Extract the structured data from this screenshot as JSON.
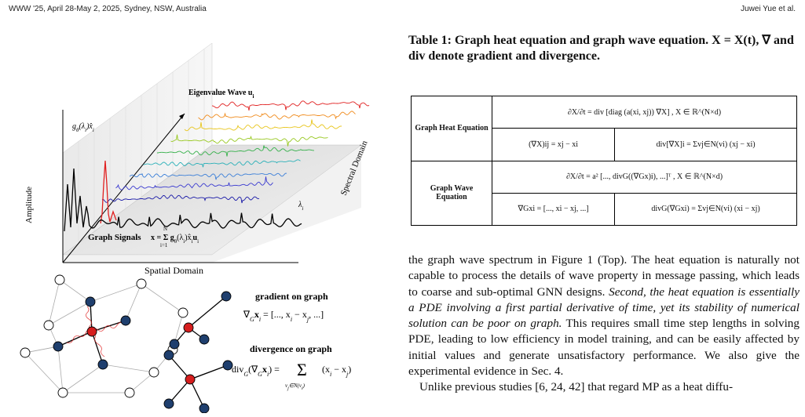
{
  "header": {
    "venue": "WWW '25, April 28-May 2, 2025, Sydney, NSW, Australia",
    "authors": "Juwei Yue et al."
  },
  "figure": {
    "eigen_label": "Eigenvalue Wave  u",
    "eigen_sub": "i",
    "g_label": "g",
    "g_label_rest": "(λ",
    "g_label_tail": ")x̂",
    "amplitude": "Amplitude",
    "spectral": "Spectral Domain",
    "lambda": "λ",
    "lambda_sub": "i",
    "graph_signals": "Graph Signals",
    "signal_formula": "x = Σ g",
    "signal_rest": "(λ",
    "signal_tail": ")x̂",
    "signal_u": "u",
    "sum_top": "N",
    "sum_bot": "i=1",
    "spatial": "Spatial Domain",
    "gradient_title": "gradient on graph",
    "gradient_formula": "∇",
    "gradient_rest": "x",
    "gradient_rhs": " = [..., x",
    "gradient_rhs2": " − x",
    "gradient_rhs3": ", ...]",
    "divergence_title": "divergence on graph",
    "div_lhs": "div",
    "div_lhs2": "(∇",
    "div_lhs3": "x",
    "div_lhs4": ") =",
    "div_sum": "Σ",
    "div_sum_sub": "v",
    "div_sum_sub2": "∈N(v",
    "div_sum_sub3": ")",
    "div_rhs": "(x",
    "div_rhs2": " − x",
    "div_rhs3": ")"
  },
  "caption": {
    "text": "Table 1: Graph heat equation and graph wave equation. X = X(t), ∇ and div denote gradient and divergence."
  },
  "table": {
    "heat_label": "Graph Heat Equation",
    "heat_main": "∂X/∂t = div [diag (a(xi, xj)) ∇X] , X ∈ ℝ^(N×d)",
    "heat_grad": "(∇X)ij = xj − xi",
    "heat_div": "div[∇X]i = Σvj∈N(vi) (xj − xi)",
    "wave_label": "Graph Wave Equation",
    "wave_main": "∂X/∂t = a² [..., divG((∇Gx)i), ...]ᵀ , X ∈ ℝ^(N×d)",
    "wave_grad": "∇Gxi = [..., xi − xj, ...]",
    "wave_div": "divG(∇Gxi) = Σvj∈N(vi) (xi − xj)"
  },
  "paragraph": {
    "p1_a": "the graph wave spectrum in Figure 1 (Top). The heat equation is naturally not capable to process the details of wave property in message passing, which leads to coarse and sub-optimal GNN designs. ",
    "p1_b": "Second, the heat equation is essentially a PDE involving a first partial derivative of time, yet its stability of numerical solution can be poor on graph.",
    "p1_c": " This requires small time step lengths in solving PDE, leading to low efficiency in model training, and can be easily affected by initial values and generate unsatisfactory performance. We also give the experimental evidence in Sec. 4.",
    "p2": "Unlike previous studies [6, 24, 42] that regard MP as a heat diffu-"
  },
  "colors": {
    "node_blue": "#1f3f6e",
    "node_red": "#d61e1e",
    "node_white": "#ffffff",
    "wave_colors": [
      "#1a1aa8",
      "#3a3ad0",
      "#3b7fd8",
      "#2ab0b8",
      "#35b04a",
      "#98c820",
      "#e8c51a",
      "#f08a1a",
      "#e02020"
    ]
  }
}
